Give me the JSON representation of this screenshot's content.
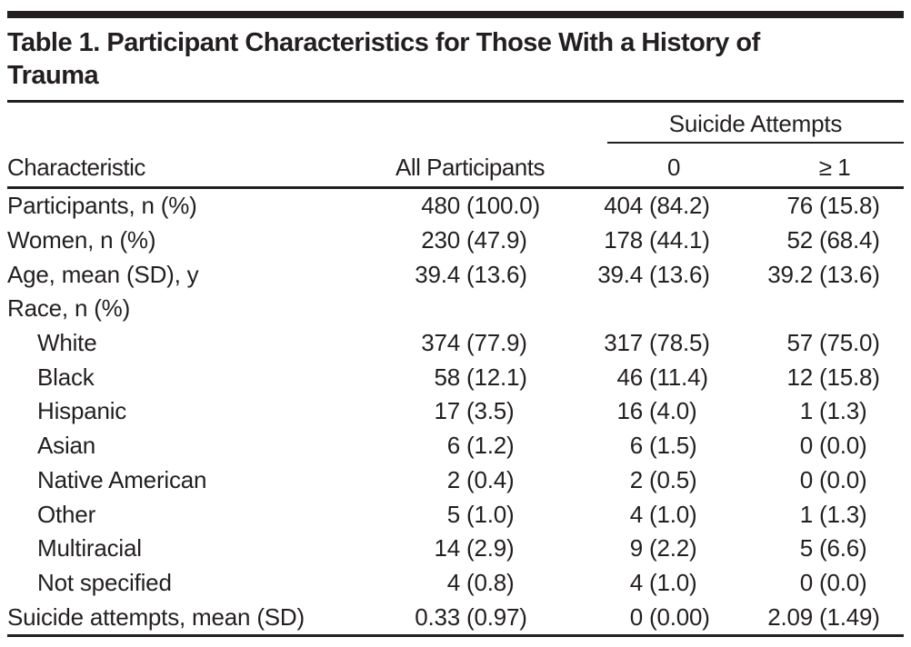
{
  "page": {
    "background_color": "#ffffff",
    "text_color": "#231f20",
    "rule_color": "#231f20"
  },
  "table": {
    "title": "Table 1. Participant Characteristics for Those With a History of Trauma",
    "header": {
      "spanner": "Suicide Attempts",
      "columns": [
        "Characteristic",
        "All Participants",
        "0",
        "≥ 1"
      ]
    },
    "rows": [
      {
        "label": "Participants, n (%)",
        "indent": false,
        "cells": [
          {
            "n": "480",
            "p": "(100.0)"
          },
          {
            "n": "404",
            "p": "(84.2)"
          },
          {
            "n": "76",
            "p": "(15.8)"
          }
        ]
      },
      {
        "label": "Women, n (%)",
        "indent": false,
        "cells": [
          {
            "n": "230",
            "p": "(47.9)"
          },
          {
            "n": "178",
            "p": "(44.1)"
          },
          {
            "n": "52",
            "p": "(68.4)"
          }
        ]
      },
      {
        "label": "Age, mean (SD), y",
        "indent": false,
        "cells": [
          {
            "n": "39.4",
            "p": "(13.6)"
          },
          {
            "n": "39.4",
            "p": "(13.6)"
          },
          {
            "n": "39.2",
            "p": "(13.6)"
          }
        ]
      },
      {
        "label": "Race, n (%)",
        "indent": false,
        "cells": []
      },
      {
        "label": "White",
        "indent": true,
        "cells": [
          {
            "n": "374",
            "p": "(77.9)"
          },
          {
            "n": "317",
            "p": "(78.5)"
          },
          {
            "n": "57",
            "p": "(75.0)"
          }
        ]
      },
      {
        "label": "Black",
        "indent": true,
        "cells": [
          {
            "n": "58",
            "p": "(12.1)"
          },
          {
            "n": "46",
            "p": "(11.4)"
          },
          {
            "n": "12",
            "p": "(15.8)"
          }
        ]
      },
      {
        "label": "Hispanic",
        "indent": true,
        "cells": [
          {
            "n": "17",
            "p": "(3.5)"
          },
          {
            "n": "16",
            "p": "(4.0)"
          },
          {
            "n": "1",
            "p": "(1.3)"
          }
        ]
      },
      {
        "label": "Asian",
        "indent": true,
        "cells": [
          {
            "n": "6",
            "p": "(1.2)"
          },
          {
            "n": "6",
            "p": "(1.5)"
          },
          {
            "n": "0",
            "p": "(0.0)"
          }
        ]
      },
      {
        "label": "Native American",
        "indent": true,
        "cells": [
          {
            "n": "2",
            "p": "(0.4)"
          },
          {
            "n": "2",
            "p": "(0.5)"
          },
          {
            "n": "0",
            "p": "(0.0)"
          }
        ]
      },
      {
        "label": "Other",
        "indent": true,
        "cells": [
          {
            "n": "5",
            "p": "(1.0)"
          },
          {
            "n": "4",
            "p": "(1.0)"
          },
          {
            "n": "1",
            "p": "(1.3)"
          }
        ]
      },
      {
        "label": "Multiracial",
        "indent": true,
        "cells": [
          {
            "n": "14",
            "p": "(2.9)"
          },
          {
            "n": "9",
            "p": "(2.2)"
          },
          {
            "n": "5",
            "p": "(6.6)"
          }
        ]
      },
      {
        "label": "Not specified",
        "indent": true,
        "cells": [
          {
            "n": "4",
            "p": "(0.8)"
          },
          {
            "n": "4",
            "p": "(1.0)"
          },
          {
            "n": "0",
            "p": "(0.0)"
          }
        ]
      },
      {
        "label": "Suicide attempts, mean (SD)",
        "indent": false,
        "cells": [
          {
            "n": "0.33",
            "p": "(0.97)"
          },
          {
            "n": "0",
            "p": "(0.00)"
          },
          {
            "n": "2.09",
            "p": "(1.49)"
          }
        ]
      }
    ]
  }
}
